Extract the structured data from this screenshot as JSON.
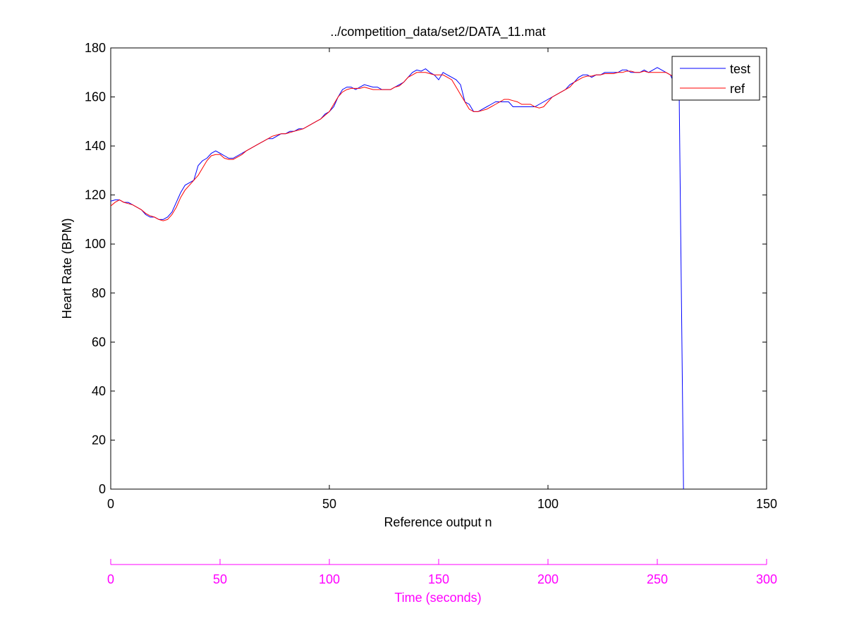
{
  "chart_data": {
    "type": "line",
    "title": "../competition_data/set2/DATA_11.mat",
    "xlabel": "Reference output n",
    "ylabel": "Heart Rate (BPM)",
    "xlim": [
      0,
      150
    ],
    "ylim": [
      0,
      180
    ],
    "x_ticks": [
      "0",
      "50",
      "100",
      "150"
    ],
    "y_ticks": [
      "0",
      "20",
      "40",
      "60",
      "80",
      "100",
      "120",
      "140",
      "160",
      "180"
    ],
    "grid": false,
    "legend_position": "top-right",
    "secondary_axis": {
      "label": "Time (seconds)",
      "range": [
        0,
        300
      ],
      "ticks": [
        "0",
        "50",
        "100",
        "150",
        "200",
        "250",
        "300"
      ],
      "color": "#ff00ff"
    },
    "series": [
      {
        "name": "test",
        "color": "#0000ff",
        "points": [
          [
            0,
            117.5
          ],
          [
            1,
            118
          ],
          [
            2,
            118
          ],
          [
            3,
            117
          ],
          [
            4,
            117
          ],
          [
            5,
            116
          ],
          [
            6,
            115
          ],
          [
            7,
            114
          ],
          [
            8,
            112
          ],
          [
            9,
            111
          ],
          [
            10,
            111
          ],
          [
            11,
            110
          ],
          [
            12,
            110
          ],
          [
            13,
            111
          ],
          [
            14,
            113
          ],
          [
            15,
            117
          ],
          [
            16,
            121
          ],
          [
            17,
            124
          ],
          [
            18,
            125
          ],
          [
            19,
            126
          ],
          [
            20,
            132
          ],
          [
            21,
            134
          ],
          [
            22,
            135
          ],
          [
            23,
            137
          ],
          [
            24,
            138
          ],
          [
            25,
            137
          ],
          [
            26,
            136
          ],
          [
            27,
            135
          ],
          [
            28,
            135
          ],
          [
            29,
            136
          ],
          [
            30,
            137
          ],
          [
            31,
            138
          ],
          [
            32,
            139
          ],
          [
            33,
            140
          ],
          [
            34,
            141
          ],
          [
            35,
            142
          ],
          [
            36,
            143
          ],
          [
            37,
            143
          ],
          [
            38,
            144
          ],
          [
            39,
            145
          ],
          [
            40,
            145
          ],
          [
            41,
            146
          ],
          [
            42,
            146
          ],
          [
            43,
            147
          ],
          [
            44,
            147
          ],
          [
            45,
            148
          ],
          [
            46,
            149
          ],
          [
            47,
            150
          ],
          [
            48,
            151
          ],
          [
            49,
            153
          ],
          [
            50,
            154
          ],
          [
            51,
            156
          ],
          [
            52,
            160
          ],
          [
            53,
            163
          ],
          [
            54,
            164
          ],
          [
            55,
            164
          ],
          [
            56,
            163
          ],
          [
            57,
            164
          ],
          [
            58,
            165
          ],
          [
            59,
            164.5
          ],
          [
            60,
            164
          ],
          [
            61,
            164
          ],
          [
            62,
            163
          ],
          [
            63,
            163
          ],
          [
            64,
            163
          ],
          [
            65,
            164
          ],
          [
            66,
            165
          ],
          [
            67,
            166
          ],
          [
            68,
            168
          ],
          [
            69,
            170
          ],
          [
            70,
            171
          ],
          [
            71,
            170.5
          ],
          [
            72,
            171.5
          ],
          [
            73,
            170
          ],
          [
            74,
            169
          ],
          [
            75,
            167
          ],
          [
            76,
            170
          ],
          [
            77,
            169
          ],
          [
            78,
            168
          ],
          [
            79,
            167
          ],
          [
            80,
            165
          ],
          [
            81,
            158
          ],
          [
            82,
            157
          ],
          [
            83,
            154
          ],
          [
            84,
            154
          ],
          [
            85,
            155
          ],
          [
            86,
            156
          ],
          [
            87,
            157
          ],
          [
            88,
            158
          ],
          [
            89,
            158
          ],
          [
            90,
            158
          ],
          [
            91,
            158
          ],
          [
            92,
            156
          ],
          [
            93,
            156
          ],
          [
            94,
            156
          ],
          [
            95,
            156
          ],
          [
            96,
            156
          ],
          [
            97,
            156
          ],
          [
            98,
            157
          ],
          [
            99,
            158
          ],
          [
            100,
            159
          ],
          [
            101,
            160
          ],
          [
            102,
            161
          ],
          [
            103,
            162
          ],
          [
            104,
            163
          ],
          [
            105,
            165
          ],
          [
            106,
            166
          ],
          [
            107,
            168
          ],
          [
            108,
            169
          ],
          [
            109,
            169
          ],
          [
            110,
            168
          ],
          [
            111,
            169
          ],
          [
            112,
            169
          ],
          [
            113,
            170
          ],
          [
            114,
            170
          ],
          [
            115,
            170
          ],
          [
            116,
            170
          ],
          [
            117,
            171
          ],
          [
            118,
            171
          ],
          [
            119,
            170
          ],
          [
            120,
            170
          ],
          [
            121,
            170
          ],
          [
            122,
            171
          ],
          [
            123,
            170
          ],
          [
            124,
            171
          ],
          [
            125,
            172
          ],
          [
            126,
            171
          ],
          [
            127,
            170
          ],
          [
            128,
            169
          ],
          [
            129,
            165
          ],
          [
            130,
            162
          ],
          [
            131,
            0
          ]
        ]
      },
      {
        "name": "ref",
        "color": "#ff0000",
        "points": [
          [
            0,
            115.5
          ],
          [
            1,
            117
          ],
          [
            2,
            118
          ],
          [
            3,
            117
          ],
          [
            4,
            116.5
          ],
          [
            5,
            116
          ],
          [
            6,
            115
          ],
          [
            7,
            114
          ],
          [
            8,
            112.5
          ],
          [
            9,
            111.5
          ],
          [
            10,
            111
          ],
          [
            11,
            110
          ],
          [
            12,
            109.5
          ],
          [
            13,
            110
          ],
          [
            14,
            112
          ],
          [
            15,
            115
          ],
          [
            16,
            119
          ],
          [
            17,
            122
          ],
          [
            18,
            124
          ],
          [
            19,
            126
          ],
          [
            20,
            128
          ],
          [
            21,
            131
          ],
          [
            22,
            134
          ],
          [
            23,
            136
          ],
          [
            24,
            136.5
          ],
          [
            25,
            136.5
          ],
          [
            26,
            135
          ],
          [
            27,
            134.5
          ],
          [
            28,
            134.5
          ],
          [
            29,
            135.5
          ],
          [
            30,
            136.5
          ],
          [
            31,
            138
          ],
          [
            32,
            139
          ],
          [
            33,
            140
          ],
          [
            34,
            141
          ],
          [
            35,
            142
          ],
          [
            36,
            143
          ],
          [
            37,
            144
          ],
          [
            38,
            144.5
          ],
          [
            39,
            145
          ],
          [
            40,
            145
          ],
          [
            41,
            145.5
          ],
          [
            42,
            146
          ],
          [
            43,
            146.5
          ],
          [
            44,
            147
          ],
          [
            45,
            148
          ],
          [
            46,
            149
          ],
          [
            47,
            150
          ],
          [
            48,
            151
          ],
          [
            49,
            152.5
          ],
          [
            50,
            154
          ],
          [
            51,
            157
          ],
          [
            52,
            160
          ],
          [
            53,
            162
          ],
          [
            54,
            163
          ],
          [
            55,
            163.5
          ],
          [
            56,
            163.5
          ],
          [
            57,
            163.5
          ],
          [
            58,
            164
          ],
          [
            59,
            163.5
          ],
          [
            60,
            163
          ],
          [
            61,
            163
          ],
          [
            62,
            163
          ],
          [
            63,
            163
          ],
          [
            64,
            163
          ],
          [
            65,
            164
          ],
          [
            66,
            164.5
          ],
          [
            67,
            166
          ],
          [
            68,
            168
          ],
          [
            69,
            169
          ],
          [
            70,
            170
          ],
          [
            71,
            170
          ],
          [
            72,
            170
          ],
          [
            73,
            169.5
          ],
          [
            74,
            169
          ],
          [
            75,
            169
          ],
          [
            76,
            169
          ],
          [
            77,
            168
          ],
          [
            78,
            167
          ],
          [
            79,
            164
          ],
          [
            80,
            161
          ],
          [
            81,
            158
          ],
          [
            82,
            155
          ],
          [
            83,
            154
          ],
          [
            84,
            154
          ],
          [
            85,
            154.5
          ],
          [
            86,
            155
          ],
          [
            87,
            156
          ],
          [
            88,
            157
          ],
          [
            89,
            158
          ],
          [
            90,
            159
          ],
          [
            91,
            159
          ],
          [
            92,
            158.5
          ],
          [
            93,
            158
          ],
          [
            94,
            157
          ],
          [
            95,
            157
          ],
          [
            96,
            157
          ],
          [
            97,
            156
          ],
          [
            98,
            155.5
          ],
          [
            99,
            156
          ],
          [
            100,
            158
          ],
          [
            101,
            160
          ],
          [
            102,
            161
          ],
          [
            103,
            162
          ],
          [
            104,
            163
          ],
          [
            105,
            164
          ],
          [
            106,
            166
          ],
          [
            107,
            167
          ],
          [
            108,
            168
          ],
          [
            109,
            168.5
          ],
          [
            110,
            168.5
          ],
          [
            111,
            169
          ],
          [
            112,
            169
          ],
          [
            113,
            169.5
          ],
          [
            114,
            169.5
          ],
          [
            115,
            169.5
          ],
          [
            116,
            170
          ],
          [
            117,
            170
          ],
          [
            118,
            170.5
          ],
          [
            119,
            170.5
          ],
          [
            120,
            170
          ],
          [
            121,
            170
          ],
          [
            122,
            170.5
          ],
          [
            123,
            170
          ],
          [
            124,
            170
          ],
          [
            125,
            170
          ],
          [
            126,
            170
          ],
          [
            127,
            170
          ],
          [
            128,
            169
          ],
          [
            129,
            168
          ],
          [
            130,
            167
          ]
        ]
      }
    ]
  }
}
